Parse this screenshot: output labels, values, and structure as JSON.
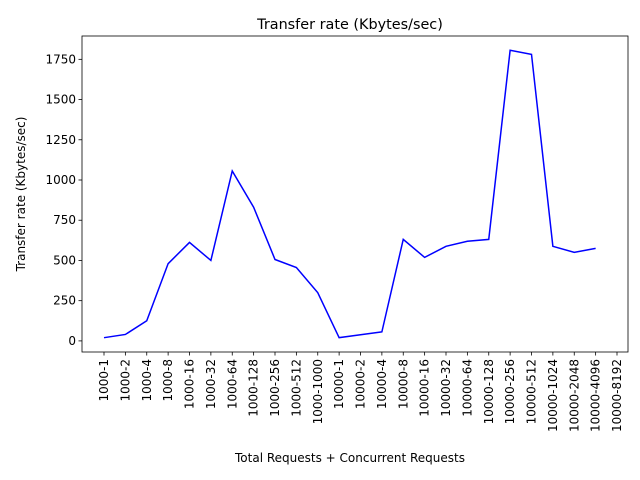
{
  "chart_data": {
    "type": "line",
    "title": "Transfer rate (Kbytes/sec)",
    "x_label": "Total Requests + Concurrent Requests",
    "y_label": "Transfer rate (Kbytes/sec)",
    "categories": [
      "1000-1",
      "1000-2",
      "1000-4",
      "1000-8",
      "1000-16",
      "1000-32",
      "1000-64",
      "1000-128",
      "1000-256",
      "1000-512",
      "1000-1000",
      "10000-1",
      "10000-2",
      "10000-4",
      "10000-8",
      "10000-16",
      "10000-32",
      "10000-64",
      "10000-128",
      "10000-256",
      "10000-512",
      "10000-1024",
      "10000-2048",
      "10000-4096",
      "10000-8192"
    ],
    "values": [
      20,
      40,
      125,
      480,
      612,
      500,
      1056,
      831,
      506,
      456,
      300,
      20,
      38,
      56,
      631,
      519,
      588,
      619,
      631,
      1806,
      1781,
      588,
      550,
      575,
      null
    ],
    "color": "#0000ff",
    "ylim": [
      -69,
      1895
    ],
    "yticks": [
      0,
      250,
      500,
      750,
      1000,
      1250,
      1500,
      1750
    ]
  }
}
